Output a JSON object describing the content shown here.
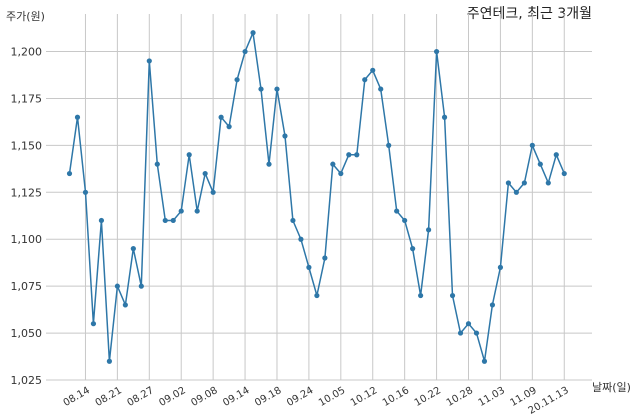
{
  "chart_data": {
    "type": "line",
    "title": "주연테크, 최근 3개월",
    "xlabel": "날짜(일)",
    "ylabel": "주가(원)",
    "ylim": [
      1025,
      1220
    ],
    "yticks": [
      1025,
      1050,
      1075,
      1100,
      1125,
      1150,
      1175,
      1200
    ],
    "ytick_labels": [
      "1,025",
      "1,050",
      "1,075",
      "1,100",
      "1,125",
      "1,150",
      "1,175",
      "1,200"
    ],
    "grid": true,
    "series": [
      {
        "color": "#2e77a8",
        "values": [
          1135,
          1165,
          1125,
          1055,
          1110,
          1035,
          1075,
          1065,
          1095,
          1075,
          1195,
          1140,
          1110,
          1110,
          1115,
          1145,
          1115,
          1135,
          1125,
          1165,
          1160,
          1185,
          1200,
          1210,
          1180,
          1140,
          1180,
          1155,
          1110,
          1100,
          1085,
          1070,
          1090,
          1140,
          1135,
          1145,
          1145,
          1185,
          1190,
          1180,
          1150,
          1115,
          1110,
          1095,
          1070,
          1105,
          1200,
          1165,
          1070,
          1050,
          1055,
          1050,
          1035,
          1065,
          1085,
          1130,
          1125,
          1130,
          1150,
          1140,
          1130,
          1145,
          1135
        ]
      }
    ],
    "xticks": [
      {
        "index": 2,
        "label": "08.14"
      },
      {
        "index": 6,
        "label": "08.21"
      },
      {
        "index": 10,
        "label": "08.27"
      },
      {
        "index": 14,
        "label": "09.02"
      },
      {
        "index": 18,
        "label": "09.08"
      },
      {
        "index": 22,
        "label": "09.14"
      },
      {
        "index": 26,
        "label": "09.18"
      },
      {
        "index": 30,
        "label": "09.24"
      },
      {
        "index": 34,
        "label": "10.05"
      },
      {
        "index": 38,
        "label": "10.12"
      },
      {
        "index": 42,
        "label": "10.16"
      },
      {
        "index": 46,
        "label": "10.22"
      },
      {
        "index": 50,
        "label": "10.28"
      },
      {
        "index": 54,
        "label": "11.03"
      },
      {
        "index": 58,
        "label": "11.09"
      },
      {
        "index": 62,
        "label": "20.11.13"
      }
    ]
  }
}
